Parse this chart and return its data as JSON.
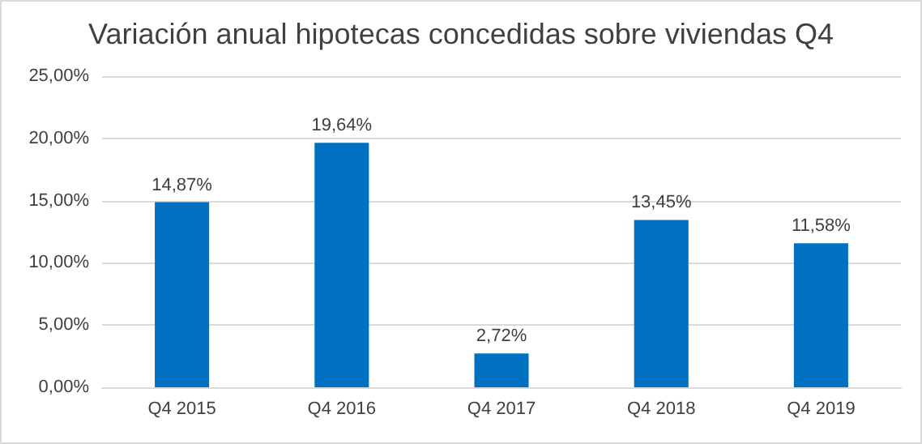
{
  "chart_data": {
    "type": "bar",
    "title": "Variación anual hipotecas concedidas sobre viviendas Q4",
    "categories": [
      "Q4 2015",
      "Q4 2016",
      "Q4 2017",
      "Q4 2018",
      "Q4 2019"
    ],
    "values": [
      14.87,
      19.64,
      2.72,
      13.45,
      11.58
    ],
    "value_labels": [
      "14,87%",
      "19,64%",
      "2,72%",
      "13,45%",
      "11,58%"
    ],
    "color": "#0070c0",
    "ylim": [
      0,
      25
    ],
    "yticks": [
      {
        "value": 0,
        "label": "0,00%"
      },
      {
        "value": 5,
        "label": "5,00%"
      },
      {
        "value": 10,
        "label": "10,00%"
      },
      {
        "value": 15,
        "label": "15,00%"
      },
      {
        "value": 20,
        "label": "20,00%"
      },
      {
        "value": 25,
        "label": "25,00%"
      }
    ],
    "grid": "y"
  }
}
